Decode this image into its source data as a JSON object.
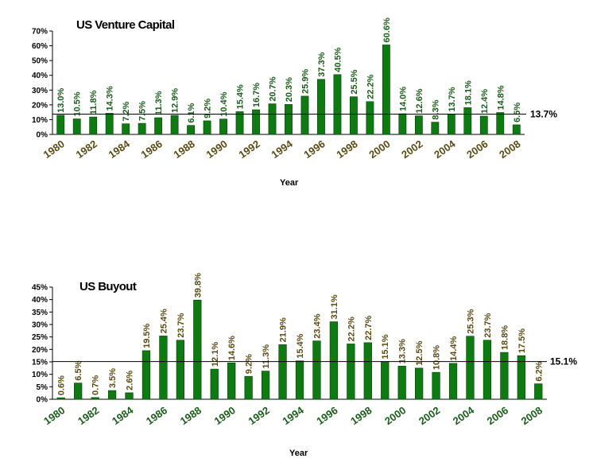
{
  "chart_data": [
    {
      "id": "vc",
      "type": "bar",
      "title": "US Venture Capital",
      "xlabel": "Year",
      "ylabel": "",
      "ylim": [
        0,
        70
      ],
      "yticks": [
        "0%",
        "10%",
        "20%",
        "30%",
        "40%",
        "50%",
        "60%",
        "70%"
      ],
      "categories": [
        "1980",
        "1981",
        "1982",
        "1983",
        "1984",
        "1985",
        "1986",
        "1987",
        "1988",
        "1989",
        "1990",
        "1991",
        "1992",
        "1993",
        "1994",
        "1995",
        "1996",
        "1997",
        "1998",
        "1999",
        "2000",
        "2001",
        "2002",
        "2003",
        "2004",
        "2005",
        "2006",
        "2007",
        "2008"
      ],
      "xtick_labels": [
        "1980",
        "1982",
        "1984",
        "1986",
        "1988",
        "1990",
        "1992",
        "1994",
        "1996",
        "1998",
        "2000",
        "2002",
        "2004",
        "2006",
        "2008"
      ],
      "values": [
        13.0,
        10.5,
        11.8,
        14.3,
        7.2,
        7.5,
        11.3,
        12.9,
        6.1,
        9.2,
        10.4,
        15.4,
        16.7,
        20.7,
        20.3,
        25.9,
        37.3,
        40.5,
        25.5,
        22.2,
        60.6,
        14.0,
        12.6,
        8.3,
        13.7,
        18.1,
        12.4,
        14.8,
        6.5
      ],
      "labels": [
        "13.0%",
        "10.5%",
        "11.8%",
        "14.3%",
        "7.2%",
        "7.5%",
        "11.3%",
        "12.9%",
        "6.1%",
        "9.2%",
        "10.4%",
        "15.4%",
        "16.7%",
        "20.7%",
        "20.3%",
        "25.9%",
        "37.3%",
        "40.5%",
        "25.5%",
        "22.2%",
        "60.6%",
        "14.0%",
        "12.6%",
        "8.3%",
        "13.7%",
        "18.1%",
        "12.4%",
        "14.8%",
        "6.5%"
      ],
      "average": 13.7,
      "average_label": "13.7%",
      "colors": {
        "bar": "#0e7a12",
        "label": "#1a5c1a",
        "xtick": "#5a4a14"
      }
    },
    {
      "id": "bo",
      "type": "bar",
      "title": "US Buyout",
      "xlabel": "Year",
      "ylabel": "",
      "ylim": [
        0,
        45
      ],
      "yticks": [
        "0%",
        "5%",
        "10%",
        "15%",
        "20%",
        "25%",
        "30%",
        "35%",
        "40%",
        "45%"
      ],
      "categories": [
        "1980",
        "1981",
        "1982",
        "1983",
        "1984",
        "1985",
        "1986",
        "1987",
        "1988",
        "1989",
        "1990",
        "1991",
        "1992",
        "1993",
        "1994",
        "1995",
        "1996",
        "1997",
        "1998",
        "1999",
        "2000",
        "2001",
        "2002",
        "2003",
        "2004",
        "2005",
        "2006",
        "2007",
        "2008"
      ],
      "xtick_labels": [
        "1980",
        "1982",
        "1984",
        "1986",
        "1988",
        "1990",
        "1992",
        "1994",
        "1996",
        "1998",
        "2000",
        "2002",
        "2004",
        "2006",
        "2008"
      ],
      "values": [
        0.6,
        6.5,
        0.7,
        3.5,
        2.6,
        19.5,
        25.4,
        23.7,
        39.8,
        12.1,
        14.6,
        9.2,
        11.3,
        21.9,
        15.4,
        23.4,
        31.1,
        22.2,
        22.7,
        15.1,
        13.3,
        12.5,
        10.8,
        14.4,
        25.3,
        23.7,
        18.8,
        17.5,
        6.2
      ],
      "labels": [
        "0.6%",
        "6.5%",
        "0.7%",
        "3.5%",
        "2.6%",
        "19.5%",
        "25.4%",
        "23.7%",
        "39.8%",
        "12.1%",
        "14.6%",
        "9.2%",
        "11.3%",
        "21.9%",
        "15.4%",
        "23.4%",
        "31.1%",
        "22.2%",
        "22.7%",
        "15.1%",
        "13.3%",
        "12.5%",
        "10.8%",
        "14.4%",
        "25.3%",
        "23.7%",
        "18.8%",
        "17.5%",
        "6.2%"
      ],
      "average": 15.1,
      "average_label": "15.1%",
      "colors": {
        "bar": "#0e7a12",
        "label": "#5a4a14",
        "xtick": "#1a5c1a"
      }
    }
  ]
}
